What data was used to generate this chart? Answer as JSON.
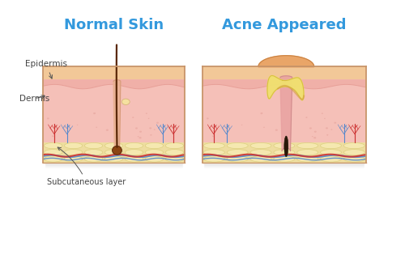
{
  "title_left": "Normal Skin",
  "title_right": "Acne Appeared",
  "title_color": "#3399dd",
  "title_fontsize": 13,
  "bg_color": "#ffffff",
  "label_epidermis": "Epidermis",
  "label_dermis": "Dermis",
  "label_subcutaneous": "Subcutaneous layer",
  "label_fontsize": 7.5,
  "label_color": "#444444",
  "skin_top_color": "#f2c898",
  "epidermis_color": "#f0b0a8",
  "epidermis_dark_color": "#e8a098",
  "dermis_color": "#f5c0b8",
  "dermis_dot_color": "#e8a8a0",
  "fat_cell_color": "#f5e8b0",
  "fat_cell_border": "#ddd080",
  "fat_bg_color": "#eedda0",
  "nerve_color": "#5588cc",
  "artery_color": "#cc3333",
  "hair_color": "#5a2808",
  "hair_follicle_color": "#c87850",
  "hair_sheath_color": "#e8b090",
  "sebaceous_color": "#f5e0a0",
  "sebaceous_border": "#d0b070",
  "pus_color": "#f0e070",
  "pus_border": "#d8c040",
  "pus_shadow_color": "#d4a040",
  "inflammation_color": "#e8a060",
  "inflammation_pink": "#f0c0a0",
  "blackhead_color": "#2a1808",
  "follicle_pink": "#e8a0a0"
}
